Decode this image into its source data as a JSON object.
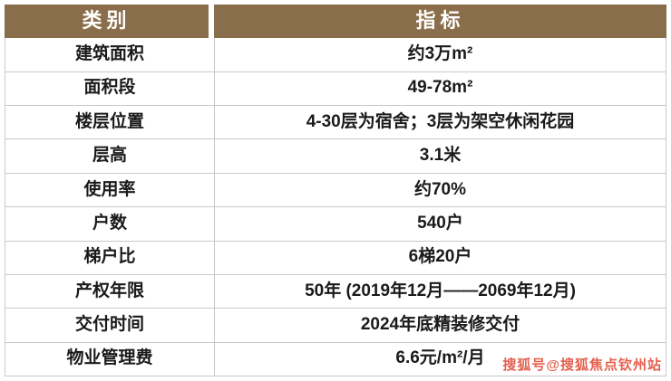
{
  "table": {
    "headers": [
      {
        "label": "类别"
      },
      {
        "label": "指标"
      }
    ],
    "rows": [
      {
        "category": "建筑面积",
        "value": "约3万m²"
      },
      {
        "category": "面积段",
        "value": "49-78m²"
      },
      {
        "category": "楼层位置",
        "value": "4-30层为宿舍；3层为架空休闲花园"
      },
      {
        "category": "层高",
        "value": "3.1米"
      },
      {
        "category": "使用率",
        "value": "约70%"
      },
      {
        "category": "户数",
        "value": "540户"
      },
      {
        "category": "梯户比",
        "value": "6梯20户"
      },
      {
        "category": "产权年限",
        "value": "50年 (2019年12月——2069年12月)"
      },
      {
        "category": "交付时间",
        "value": "2024年底精装修交付"
      },
      {
        "category": "物业管理费",
        "value": "6.6元/m²/月"
      }
    ]
  },
  "watermark": "搜狐号@搜狐焦点钦州站",
  "colors": {
    "header_bg": "#8a6d4a",
    "border": "#c9c9c9",
    "body_text": "#1a1a1a",
    "watermark": "#e4604e"
  }
}
